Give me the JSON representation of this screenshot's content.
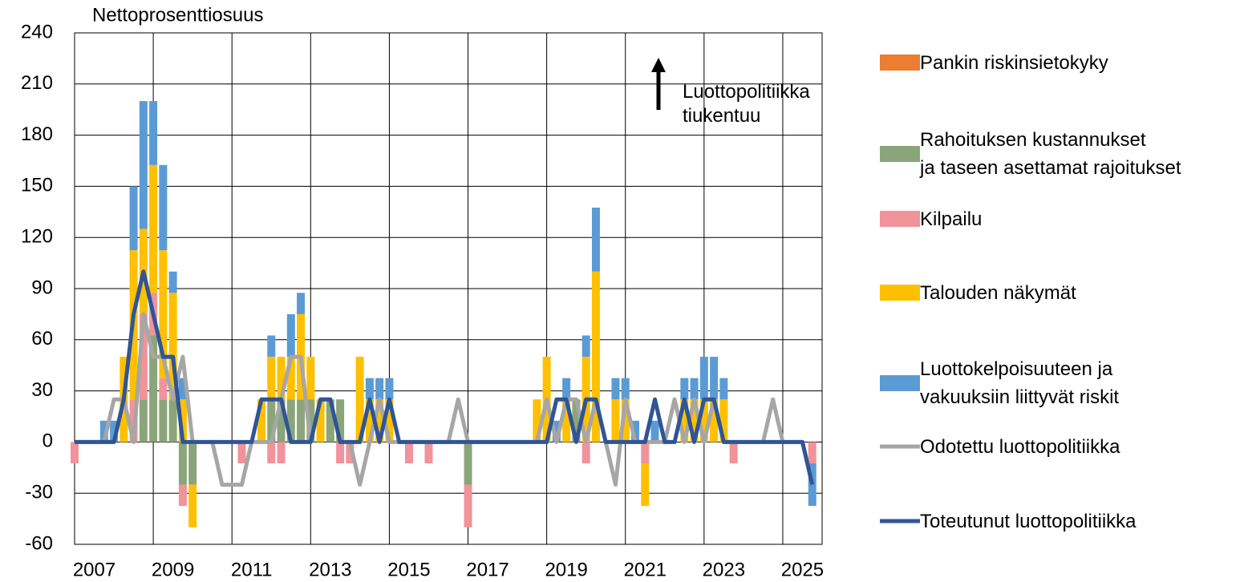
{
  "chart_data": {
    "type": "bar",
    "stacked": true,
    "y_label": "Nettoprosenttiosuus",
    "annotation": "Luottopolitiikka\ntiukentuu",
    "xlim": [
      2007,
      2026
    ],
    "xticks": [
      2007,
      2009,
      2011,
      2013,
      2015,
      2017,
      2019,
      2021,
      2023,
      2025
    ],
    "ylim": [
      -60,
      240
    ],
    "yticks": [
      -60,
      -30,
      0,
      30,
      60,
      90,
      120,
      150,
      180,
      210,
      240
    ],
    "grid": true,
    "legend": "right",
    "x": [
      2007,
      2007.25,
      2007.5,
      2007.75,
      2008,
      2008.25,
      2008.5,
      2008.75,
      2009,
      2009.25,
      2009.5,
      2009.75,
      2010,
      2010.25,
      2010.5,
      2010.75,
      2011,
      2011.25,
      2011.5,
      2011.75,
      2012,
      2012.25,
      2012.5,
      2012.75,
      2013,
      2013.25,
      2013.5,
      2013.75,
      2014,
      2014.25,
      2014.5,
      2014.75,
      2015,
      2015.25,
      2015.5,
      2015.75,
      2016,
      2016.25,
      2016.5,
      2016.75,
      2017,
      2017.25,
      2017.5,
      2017.75,
      2018,
      2018.25,
      2018.5,
      2018.75,
      2019,
      2019.25,
      2019.5,
      2019.75,
      2020,
      2020.25,
      2020.5,
      2020.75,
      2021,
      2021.25,
      2021.5,
      2021.75,
      2022,
      2022.25,
      2022.5,
      2022.75,
      2023,
      2023.25,
      2023.5,
      2023.75,
      2024,
      2024.25,
      2024.5,
      2024.75,
      2025,
      2025.25,
      2025.5,
      2025.75
    ],
    "series": [
      {
        "name": "Pankin riskinsietokyky",
        "color": "#ED7D31",
        "kind": "bar",
        "values": [
          0,
          0,
          0,
          0,
          0,
          0,
          0,
          0,
          0,
          0,
          0,
          0,
          0,
          0,
          0,
          0,
          0,
          0,
          0,
          0,
          0,
          0,
          0,
          0,
          0,
          0,
          0,
          0,
          0,
          0,
          0,
          0,
          0,
          0,
          0,
          0,
          0,
          0,
          0,
          0,
          0,
          0,
          0,
          0,
          0,
          0,
          0,
          0,
          0,
          0,
          0,
          0,
          0,
          0,
          0,
          0,
          0,
          0,
          0,
          0,
          0,
          0,
          0,
          0,
          0,
          0,
          0,
          0,
          0,
          0,
          0,
          0,
          0,
          0,
          0,
          0
        ]
      },
      {
        "name": "Rahoituksen kustannukset\nja taseen asettamat rajoitukset",
        "color": "#8BA57A",
        "kind": "bar",
        "values": [
          0,
          0,
          0,
          0,
          0,
          0,
          0,
          25,
          62.5,
          25,
          25,
          -25,
          -25,
          0,
          0,
          0,
          0,
          0,
          0,
          0,
          25,
          25,
          25,
          25,
          25,
          0,
          25,
          25,
          0,
          0,
          0,
          0,
          0,
          0,
          0,
          0,
          0,
          0,
          0,
          0,
          -25,
          0,
          0,
          0,
          0,
          0,
          0,
          0,
          0,
          0,
          0,
          25,
          0,
          0,
          0,
          0,
          0,
          0,
          0,
          0,
          0,
          0,
          0,
          0,
          0,
          0,
          0,
          0,
          0,
          0,
          0,
          0,
          0,
          0,
          0,
          0
        ]
      },
      {
        "name": "Kilpailu",
        "color": "#F0939A",
        "kind": "bar",
        "values": [
          -12.5,
          0,
          0,
          0,
          0,
          0,
          25,
          50,
          25,
          12.5,
          0,
          -12.5,
          0,
          0,
          0,
          0,
          0,
          -12.5,
          0,
          0,
          -12.5,
          -12.5,
          0,
          0,
          0,
          0,
          0,
          -12.5,
          -12.5,
          0,
          0,
          0,
          0,
          0,
          -12.5,
          0,
          -12.5,
          0,
          0,
          0,
          -25,
          0,
          0,
          0,
          0,
          0,
          0,
          0,
          0,
          0,
          0,
          0,
          -12.5,
          0,
          0,
          0,
          0,
          0,
          -12.5,
          0,
          0,
          0,
          0,
          0,
          0,
          0,
          0,
          -12.5,
          0,
          0,
          0,
          0,
          0,
          0,
          0,
          -12.5
        ]
      },
      {
        "name": "Talouden näkymät",
        "color": "#FFC000",
        "kind": "bar",
        "values": [
          0,
          0,
          0,
          0,
          0,
          50,
          87.5,
          50,
          75,
          75,
          62.5,
          25,
          -25,
          0,
          0,
          0,
          0,
          0,
          0,
          25,
          25,
          25,
          25,
          50,
          25,
          25,
          0,
          0,
          0,
          50,
          25,
          25,
          25,
          0,
          0,
          0,
          0,
          0,
          0,
          0,
          0,
          0,
          0,
          0,
          0,
          0,
          0,
          25,
          50,
          0,
          25,
          0,
          50,
          100,
          0,
          25,
          25,
          0,
          -25,
          0,
          0,
          0,
          25,
          25,
          25,
          25,
          25,
          0,
          0,
          0,
          0,
          0,
          0,
          0,
          0,
          0
        ]
      },
      {
        "name": "Luottokelpoisuuteen ja\nvakuuksiin liittyvät riskit",
        "color": "#5B9BD5",
        "kind": "bar",
        "values": [
          0,
          0,
          0,
          12.5,
          12.5,
          0,
          37.5,
          75,
          37.5,
          50,
          12.5,
          12.5,
          0,
          0,
          0,
          0,
          0,
          0,
          0,
          0,
          12.5,
          0,
          25,
          12.5,
          0,
          0,
          0,
          0,
          0,
          0,
          12.5,
          12.5,
          12.5,
          0,
          0,
          0,
          0,
          0,
          0,
          0,
          0,
          0,
          0,
          0,
          0,
          0,
          0,
          0,
          0,
          12.5,
          12.5,
          0,
          12.5,
          37.5,
          0,
          12.5,
          12.5,
          12.5,
          0,
          12.5,
          0,
          0,
          12.5,
          12.5,
          25,
          25,
          12.5,
          0,
          0,
          0,
          0,
          0,
          0,
          0,
          0,
          -25
        ]
      },
      {
        "name": "Odotettu luottopolitiikka",
        "color": "#A6A6A6",
        "kind": "line",
        "values": [
          0,
          0,
          0,
          0,
          25,
          25,
          0,
          75,
          50,
          50,
          25,
          50,
          0,
          0,
          0,
          -25,
          -25,
          -25,
          0,
          0,
          0,
          25,
          50,
          50,
          0,
          25,
          25,
          0,
          0,
          -25,
          0,
          25,
          0,
          0,
          0,
          0,
          0,
          0,
          0,
          25,
          0,
          0,
          0,
          0,
          0,
          0,
          0,
          0,
          25,
          0,
          25,
          25,
          0,
          25,
          0,
          -25,
          25,
          0,
          0,
          0,
          0,
          25,
          0,
          25,
          0,
          25,
          0,
          0,
          0,
          0,
          0,
          25,
          0,
          0,
          0,
          -25
        ]
      },
      {
        "name": "Toteutunut luottopolitiikka",
        "color": "#2F5597",
        "kind": "line",
        "values": [
          0,
          0,
          0,
          0,
          0,
          25,
          75,
          100,
          75,
          50,
          50,
          0,
          0,
          0,
          0,
          0,
          0,
          0,
          0,
          25,
          25,
          25,
          0,
          0,
          0,
          25,
          25,
          0,
          0,
          0,
          25,
          0,
          25,
          0,
          0,
          0,
          0,
          0,
          0,
          0,
          0,
          0,
          0,
          0,
          0,
          0,
          0,
          0,
          0,
          25,
          25,
          0,
          25,
          25,
          0,
          0,
          0,
          0,
          0,
          25,
          0,
          0,
          25,
          0,
          25,
          25,
          0,
          0,
          0,
          0,
          0,
          0,
          0,
          0,
          0,
          -25
        ]
      }
    ]
  }
}
